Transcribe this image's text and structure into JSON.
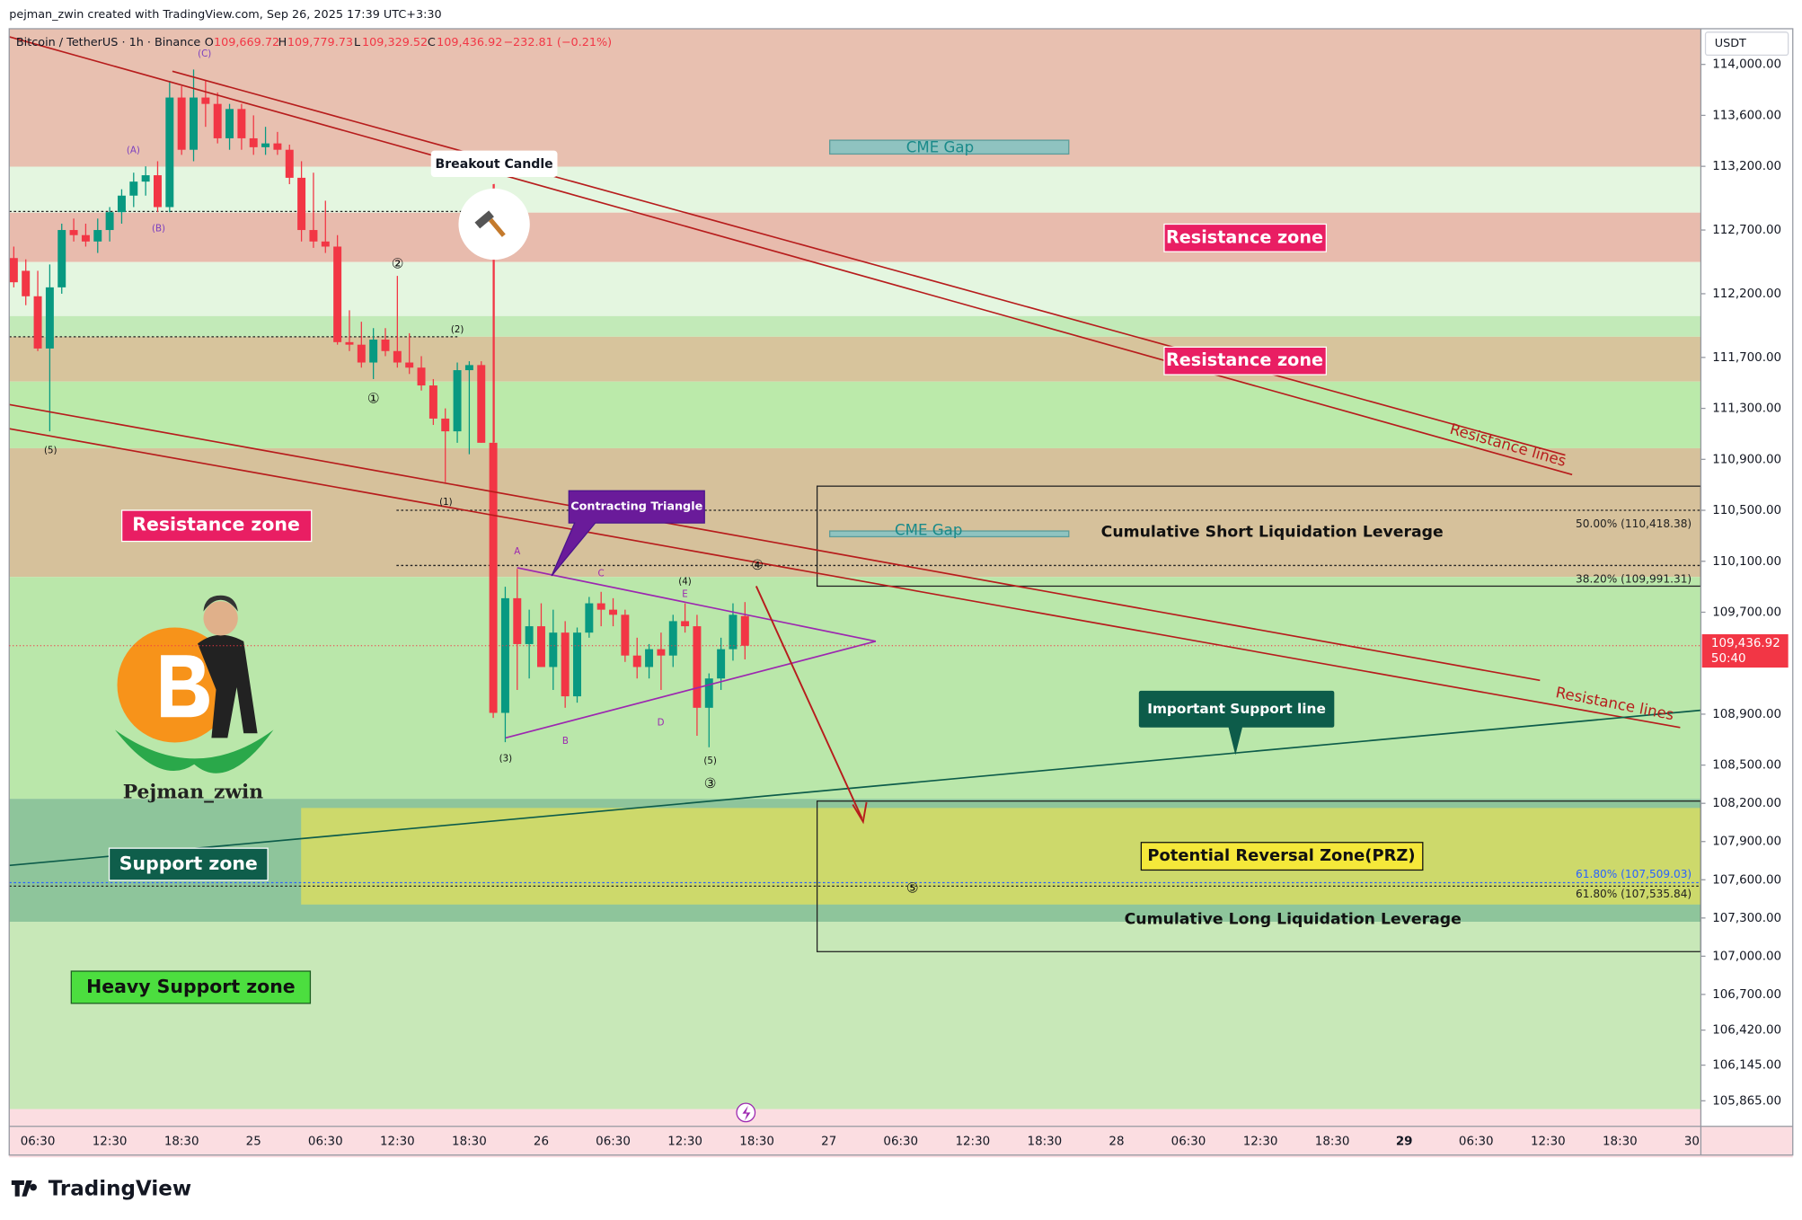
{
  "header": {
    "attribution": "pejman_zwin created with TradingView.com, Sep 26, 2025 17:39 UTC+3:30",
    "brand": "TradingView"
  },
  "chart_data": {
    "type": "candlestick",
    "title": "Bitcoin / TetherUS · 1h · Binance",
    "ohlc_legend": [
      "O",
      "109,669.72",
      "H",
      "109,779.73",
      "L",
      "109,329.52",
      "C",
      "109,436.92",
      "−232.81 (−0.21%)"
    ],
    "currency": "USDT",
    "colors": {
      "up": "#089981",
      "down": "#f23645"
    },
    "open": [
      112480,
      112380,
      112180,
      111770,
      112250,
      112700,
      112660,
      112610,
      112700,
      112840,
      112970,
      113080,
      113130,
      112880,
      113740,
      113330,
      113740,
      113690,
      113420,
      113650,
      113420,
      113350,
      113380,
      113330,
      113110,
      112700,
      112610,
      112570,
      111820,
      111800,
      111660,
      111840,
      111750,
      111660,
      111620,
      111480,
      111220,
      111120,
      111600,
      111640,
      111030,
      108910,
      109810,
      109450,
      109590,
      109270,
      109540,
      109040,
      109540,
      109770,
      109720,
      109680,
      109360,
      109270,
      109410,
      109360,
      109630,
      109590,
      108950,
      109180,
      109410,
      109669.72
    ],
    "high": [
      112570,
      112470,
      112380,
      112430,
      112750,
      112790,
      112750,
      112790,
      112880,
      113020,
      113150,
      113200,
      113240,
      113870,
      113830,
      113960,
      113870,
      113780,
      113690,
      113690,
      113600,
      113510,
      113470,
      113370,
      113240,
      113150,
      112930,
      112660,
      112070,
      111980,
      111930,
      111930,
      112340,
      111890,
      111710,
      111530,
      111300,
      111660,
      111670,
      111670,
      113060,
      109900,
      110040,
      109720,
      109770,
      109720,
      109630,
      109580,
      109820,
      109860,
      109810,
      109720,
      109500,
      109450,
      109540,
      109680,
      109770,
      109680,
      109220,
      109500,
      109770,
      109779.73
    ],
    "low": [
      112250,
      112110,
      111750,
      111120,
      112200,
      112610,
      112570,
      112520,
      112610,
      112750,
      112880,
      112970,
      112840,
      112840,
      113290,
      113240,
      113510,
      113380,
      113330,
      113330,
      113290,
      113290,
      113290,
      113060,
      112610,
      112560,
      112520,
      111800,
      111750,
      111620,
      111530,
      111710,
      111620,
      111570,
      111440,
      111170,
      110720,
      111030,
      110940,
      111030,
      108870,
      108680,
      109090,
      109180,
      109270,
      109090,
      108950,
      108990,
      109500,
      109590,
      109590,
      109310,
      109180,
      109180,
      109090,
      109270,
      109540,
      108730,
      108640,
      109090,
      109320,
      109329.52
    ],
    "close": [
      112290,
      112180,
      111770,
      112250,
      112700,
      112660,
      112610,
      112700,
      112840,
      112970,
      113080,
      113130,
      112880,
      113740,
      113330,
      113740,
      113690,
      113420,
      113650,
      113420,
      113350,
      113380,
      113330,
      113110,
      112700,
      112610,
      112570,
      111820,
      111800,
      111660,
      111840,
      111750,
      111660,
      111620,
      111480,
      111220,
      111120,
      111600,
      111640,
      111030,
      108910,
      109810,
      109450,
      109590,
      109270,
      109540,
      109040,
      109540,
      109770,
      109720,
      109680,
      109360,
      109270,
      109410,
      109360,
      109630,
      109590,
      108950,
      109180,
      109410,
      109680,
      109436.92
    ],
    "ylim": [
      105800,
      114280
    ],
    "yticks": [
      {
        "value": 114000,
        "label": "114,000.00"
      },
      {
        "value": 113600,
        "label": "113,600.00"
      },
      {
        "value": 113200,
        "label": "113,200.00"
      },
      {
        "value": 112700,
        "label": "112,700.00"
      },
      {
        "value": 112200,
        "label": "112,200.00"
      },
      {
        "value": 111700,
        "label": "111,700.00"
      },
      {
        "value": 111300,
        "label": "111,300.00"
      },
      {
        "value": 110900,
        "label": "110,900.00"
      },
      {
        "value": 110500,
        "label": "110,500.00"
      },
      {
        "value": 110100,
        "label": "110,100.00"
      },
      {
        "value": 109700,
        "label": "109,700.00"
      },
      {
        "value": 108900,
        "label": "108,900.00"
      },
      {
        "value": 108500,
        "label": "108,500.00"
      },
      {
        "value": 108200,
        "label": "108,200.00"
      },
      {
        "value": 107900,
        "label": "107,900.00"
      },
      {
        "value": 107600,
        "label": "107,600.00"
      },
      {
        "value": 107300,
        "label": "107,300.00"
      },
      {
        "value": 107000,
        "label": "107,000.00"
      },
      {
        "value": 106700,
        "label": "106,700.00"
      },
      {
        "value": 106420,
        "label": "106,420.00"
      },
      {
        "value": 106145,
        "label": "106,145.00"
      },
      {
        "value": 105865,
        "label": "105,865.00"
      }
    ],
    "xticks": [
      "06:30",
      "12:30",
      "18:30",
      "25",
      "06:30",
      "12:30",
      "18:30",
      "26",
      "06:30",
      "12:30",
      "18:30",
      "27",
      "06:30",
      "12:30",
      "18:30",
      "28",
      "06:30",
      "12:30",
      "18:30",
      "29",
      "06:30",
      "12:30",
      "18:30",
      "30"
    ],
    "last_price": {
      "value": 109436.92,
      "label": "109,436.92"
    },
    "countdown": "50:40",
    "annotations": [
      "Breakout Candle",
      "Contracting Triangle",
      "Important Support line",
      "CME Gap",
      "CME Gap",
      "Resistance zone",
      "Resistance zone",
      "Resistance zone",
      "Support zone",
      "Heavy Support zone",
      "Potential Reversal Zone(PRZ)",
      "Cumulative Short Liquidation Leverage",
      "Cumulative Long Liquidation Leverage",
      "Resistance lines",
      "Resistance lines",
      "Pejman_zwin"
    ],
    "wave_labels": [
      "(C)",
      "(A)",
      "(B)",
      "(5)",
      "(2)",
      "②",
      "①",
      "(1)",
      "(3)",
      "(4)",
      "(5)",
      "③",
      "④",
      "⑤",
      "A",
      "B",
      "C",
      "D",
      "E"
    ],
    "fib_labels": [
      "50.00% (110,418.38)",
      "38.20% (109,991.31)",
      "61.80% (107,509.03)",
      "61.80% (107,535.84)"
    ]
  }
}
